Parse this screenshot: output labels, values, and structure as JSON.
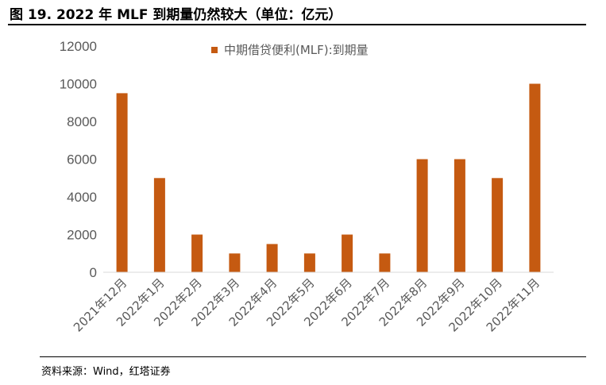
{
  "figure": {
    "title": "图 19. 2022 年 MLF 到期量仍然较大（单位：亿元）",
    "source": "资料来源：Wind，红塔证券"
  },
  "colors": {
    "bar": "#C55A11",
    "axis_text": "#595959",
    "axis_line": "#D9D9D9"
  },
  "chart_data": {
    "type": "bar",
    "title": "",
    "xlabel": "",
    "ylabel": "",
    "categories": [
      "2021年12月",
      "2022年1月",
      "2022年2月",
      "2022年3月",
      "2022年4月",
      "2022年5月",
      "2022年6月",
      "2022年7月",
      "2022年8月",
      "2022年9月",
      "2022年10月",
      "2022年11月"
    ],
    "series": [
      {
        "name": "中期借贷便利(MLF):到期量",
        "values": [
          9500,
          5000,
          2000,
          1000,
          1500,
          1000,
          2000,
          1000,
          6000,
          6000,
          5000,
          10000
        ]
      }
    ],
    "ylim": [
      0,
      12000
    ],
    "yticks": [
      0,
      2000,
      4000,
      6000,
      8000,
      10000,
      12000
    ],
    "grid": false,
    "legend_position": "top-center"
  }
}
